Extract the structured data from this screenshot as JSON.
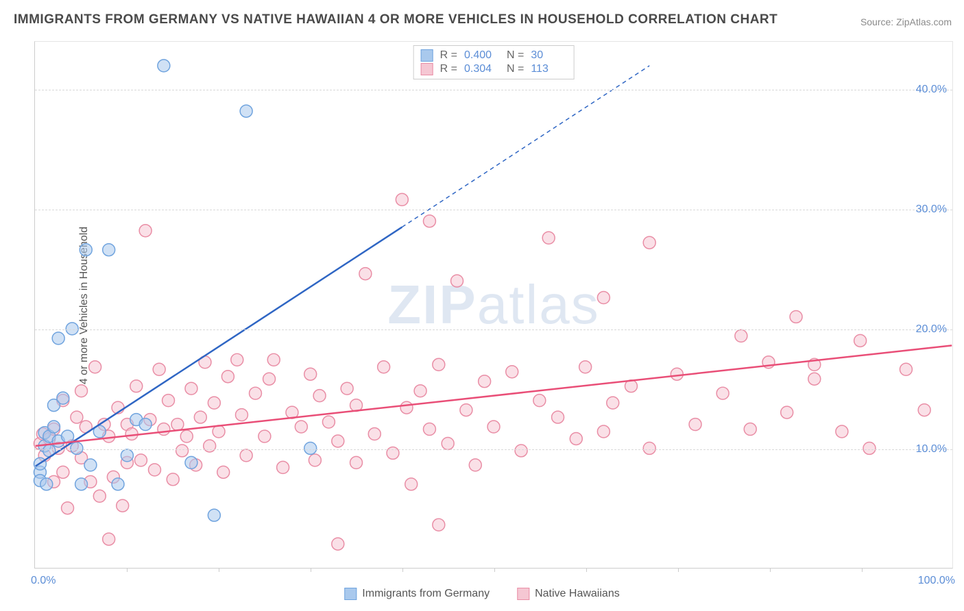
{
  "title": "IMMIGRANTS FROM GERMANY VS NATIVE HAWAIIAN 4 OR MORE VEHICLES IN HOUSEHOLD CORRELATION CHART",
  "source": "Source: ZipAtlas.com",
  "watermark_zip": "ZIP",
  "watermark_atlas": "atlas",
  "y_axis_label": "4 or more Vehicles in Household",
  "chart": {
    "type": "scatter",
    "xlim": [
      0,
      100
    ],
    "ylim": [
      0,
      44
    ],
    "x_tick_labels": [
      {
        "value": 0,
        "label": "0.0%"
      },
      {
        "value": 100,
        "label": "100.0%"
      }
    ],
    "x_tick_marks": [
      10,
      20,
      30,
      40,
      50,
      60,
      70,
      80,
      90
    ],
    "y_ticks": [
      {
        "value": 10,
        "label": "10.0%"
      },
      {
        "value": 20,
        "label": "20.0%"
      },
      {
        "value": 30,
        "label": "30.0%"
      },
      {
        "value": 40,
        "label": "40.0%"
      }
    ],
    "background_color": "#ffffff",
    "grid_color": "#d8d8d8",
    "series": [
      {
        "name": "Immigrants from Germany",
        "marker_color": "#a9c9ed",
        "marker_stroke": "#6fa3de",
        "marker_radius": 9,
        "line_color": "#2f66c4",
        "line_width": 2.5,
        "r_label": "R =",
        "r_value": "0.400",
        "n_label": "N =",
        "n_value": "30",
        "trend": {
          "x1": 0,
          "y1": 8.5,
          "x2": 40,
          "y2": 28.5,
          "dash_x2": 67,
          "dash_y2": 42
        },
        "points": [
          [
            0.5,
            8.0
          ],
          [
            0.5,
            7.3
          ],
          [
            0.5,
            8.7
          ],
          [
            1.0,
            10.2
          ],
          [
            1.0,
            11.3
          ],
          [
            1.2,
            7.0
          ],
          [
            1.5,
            9.8
          ],
          [
            1.5,
            11.0
          ],
          [
            2.0,
            11.8
          ],
          [
            2.0,
            13.6
          ],
          [
            2.5,
            10.6
          ],
          [
            2.5,
            19.2
          ],
          [
            3.0,
            14.2
          ],
          [
            3.5,
            11.0
          ],
          [
            4.0,
            20.0
          ],
          [
            4.5,
            10.0
          ],
          [
            5.0,
            7.0
          ],
          [
            5.5,
            26.6
          ],
          [
            6.0,
            8.6
          ],
          [
            7.0,
            11.4
          ],
          [
            8.0,
            26.6
          ],
          [
            9.0,
            7.0
          ],
          [
            10.0,
            9.4
          ],
          [
            11.0,
            12.4
          ],
          [
            12.0,
            12.0
          ],
          [
            14.0,
            42.0
          ],
          [
            17.0,
            8.8
          ],
          [
            19.5,
            4.4
          ],
          [
            23.0,
            38.2
          ],
          [
            30.0,
            10.0
          ]
        ]
      },
      {
        "name": "Native Hawaiians",
        "marker_color": "#f5c7d3",
        "marker_stroke": "#e98da5",
        "marker_radius": 9,
        "line_color": "#e94e77",
        "line_width": 2.5,
        "r_label": "R =",
        "r_value": "0.304",
        "n_label": "N =",
        "n_value": "113",
        "trend": {
          "x1": 0,
          "y1": 10.2,
          "x2": 100,
          "y2": 18.6
        },
        "points": [
          [
            0.5,
            10.4
          ],
          [
            0.8,
            11.2
          ],
          [
            1.0,
            9.4
          ],
          [
            1.5,
            10.8
          ],
          [
            2.0,
            7.2
          ],
          [
            2.0,
            11.6
          ],
          [
            2.5,
            10.0
          ],
          [
            3.0,
            14.0
          ],
          [
            3.0,
            8.0
          ],
          [
            3.5,
            5.0
          ],
          [
            4.0,
            10.2
          ],
          [
            4.5,
            12.6
          ],
          [
            5.0,
            14.8
          ],
          [
            5.0,
            9.2
          ],
          [
            5.5,
            11.8
          ],
          [
            6.0,
            7.2
          ],
          [
            6.5,
            16.8
          ],
          [
            7.0,
            6.0
          ],
          [
            7.5,
            12.0
          ],
          [
            8.0,
            2.4
          ],
          [
            8.0,
            11.0
          ],
          [
            8.5,
            7.6
          ],
          [
            9.0,
            13.4
          ],
          [
            9.5,
            5.2
          ],
          [
            10.0,
            12.0
          ],
          [
            10.0,
            8.8
          ],
          [
            10.5,
            11.2
          ],
          [
            11.0,
            15.2
          ],
          [
            11.5,
            9.0
          ],
          [
            12.0,
            28.2
          ],
          [
            12.5,
            12.4
          ],
          [
            13.0,
            8.2
          ],
          [
            13.5,
            16.6
          ],
          [
            14.0,
            11.6
          ],
          [
            14.5,
            14.0
          ],
          [
            15.0,
            7.4
          ],
          [
            15.5,
            12.0
          ],
          [
            16.0,
            9.8
          ],
          [
            16.5,
            11.0
          ],
          [
            17.0,
            15.0
          ],
          [
            17.5,
            8.6
          ],
          [
            18.0,
            12.6
          ],
          [
            18.5,
            17.2
          ],
          [
            19.0,
            10.2
          ],
          [
            19.5,
            13.8
          ],
          [
            20.0,
            11.4
          ],
          [
            20.5,
            8.0
          ],
          [
            21.0,
            16.0
          ],
          [
            22.0,
            17.4
          ],
          [
            22.5,
            12.8
          ],
          [
            23.0,
            9.4
          ],
          [
            24.0,
            14.6
          ],
          [
            25.0,
            11.0
          ],
          [
            25.5,
            15.8
          ],
          [
            26.0,
            17.4
          ],
          [
            27.0,
            8.4
          ],
          [
            28.0,
            13.0
          ],
          [
            29.0,
            11.8
          ],
          [
            30.0,
            16.2
          ],
          [
            30.5,
            9.0
          ],
          [
            31.0,
            14.4
          ],
          [
            32.0,
            12.2
          ],
          [
            33.0,
            2.0
          ],
          [
            33.0,
            10.6
          ],
          [
            34.0,
            15.0
          ],
          [
            35.0,
            8.8
          ],
          [
            35.0,
            13.6
          ],
          [
            36.0,
            24.6
          ],
          [
            37.0,
            11.2
          ],
          [
            38.0,
            16.8
          ],
          [
            39.0,
            9.6
          ],
          [
            40.0,
            30.8
          ],
          [
            40.5,
            13.4
          ],
          [
            41.0,
            7.0
          ],
          [
            42.0,
            14.8
          ],
          [
            43.0,
            11.6
          ],
          [
            43.0,
            29.0
          ],
          [
            44.0,
            17.0
          ],
          [
            44.0,
            3.6
          ],
          [
            45.0,
            10.4
          ],
          [
            46.0,
            24.0
          ],
          [
            47.0,
            13.2
          ],
          [
            48.0,
            8.6
          ],
          [
            49.0,
            15.6
          ],
          [
            50.0,
            11.8
          ],
          [
            52.0,
            16.4
          ],
          [
            53.0,
            9.8
          ],
          [
            55.0,
            14.0
          ],
          [
            56.0,
            27.6
          ],
          [
            57.0,
            12.6
          ],
          [
            59.0,
            10.8
          ],
          [
            60.0,
            16.8
          ],
          [
            62.0,
            11.4
          ],
          [
            62.0,
            22.6
          ],
          [
            63.0,
            13.8
          ],
          [
            65.0,
            15.2
          ],
          [
            67.0,
            10.0
          ],
          [
            67.0,
            27.2
          ],
          [
            70.0,
            16.2
          ],
          [
            72.0,
            12.0
          ],
          [
            75.0,
            14.6
          ],
          [
            77.0,
            19.4
          ],
          [
            78.0,
            11.6
          ],
          [
            80.0,
            17.2
          ],
          [
            82.0,
            13.0
          ],
          [
            83.0,
            21.0
          ],
          [
            85.0,
            15.8
          ],
          [
            85.0,
            17.0
          ],
          [
            88.0,
            11.4
          ],
          [
            90.0,
            19.0
          ],
          [
            91.0,
            10.0
          ],
          [
            95.0,
            16.6
          ],
          [
            97.0,
            13.2
          ]
        ]
      }
    ]
  }
}
